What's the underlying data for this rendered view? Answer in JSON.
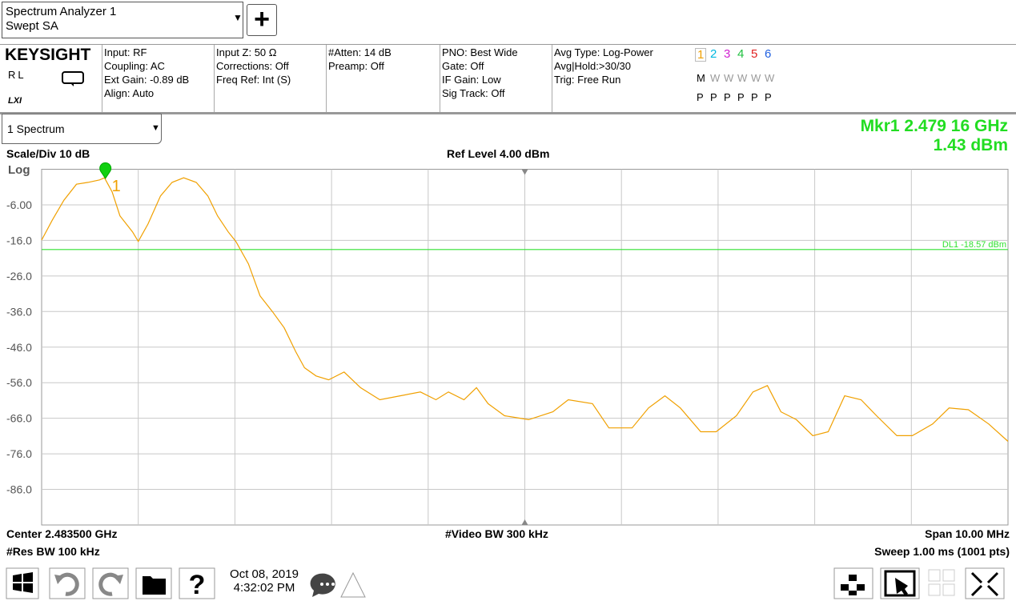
{
  "header": {
    "title": "Spectrum Analyzer 1",
    "mode": "Swept SA"
  },
  "info": {
    "brand": "KEYSIGHT",
    "rl": "RL",
    "lxi": "LXI",
    "columns": [
      [
        "Input: RF",
        "Coupling: AC",
        "Ext Gain: -0.89 dB",
        "Align: Auto"
      ],
      [
        "Input Z: 50 Ω",
        "Corrections: Off",
        "Freq Ref: Int (S)"
      ],
      [
        "#Atten: 14 dB",
        "Preamp: Off"
      ],
      [
        "PNO: Best Wide",
        "Gate: Off",
        "IF Gain: Low",
        "Sig Track: Off"
      ],
      [
        "Avg Type: Log-Power",
        "Avg|Hold:>30/30",
        "Trig: Free Run"
      ]
    ],
    "traces": {
      "numbers": [
        {
          "label": "1",
          "color": "#f0a000"
        },
        {
          "label": "2",
          "color": "#00b8e0"
        },
        {
          "label": "3",
          "color": "#d020d0"
        },
        {
          "label": "4",
          "color": "#20c040"
        },
        {
          "label": "5",
          "color": "#e02020"
        },
        {
          "label": "6",
          "color": "#2060e0"
        }
      ],
      "types": [
        "M",
        "W",
        "W",
        "W",
        "W",
        "W"
      ],
      "detectors": [
        "P",
        "P",
        "P",
        "P",
        "P",
        "P"
      ]
    }
  },
  "window": {
    "name": "1 Spectrum"
  },
  "marker_readout": [
    "Mkr1  2.479 16 GHz",
    "1.43 dBm"
  ],
  "chart_data": {
    "type": "line",
    "scale_label": "Scale/Div 10 dB",
    "ref_label": "Ref Level 4.00 dBm",
    "scale_type": "Log",
    "xlim": [
      2478.5,
      2488.5
    ],
    "ylim": [
      -96,
      4
    ],
    "x_gridlines": [
      2479.5,
      2480.5,
      2481.5,
      2482.5,
      2483.5,
      2484.5,
      2485.5,
      2486.5,
      2487.5
    ],
    "yticks": [
      {
        "value": -6,
        "label": "-6.00"
      },
      {
        "value": -16,
        "label": "-16.0"
      },
      {
        "value": -26,
        "label": "-26.0"
      },
      {
        "value": -36,
        "label": "-36.0"
      },
      {
        "value": -46,
        "label": "-46.0"
      },
      {
        "value": -56,
        "label": "-56.0"
      },
      {
        "value": -66,
        "label": "-66.0"
      },
      {
        "value": -76,
        "label": "-76.0"
      },
      {
        "value": -86,
        "label": "-86.0"
      }
    ],
    "grid": true,
    "color": "#f0a000",
    "x": [
      2478.5,
      2478.61,
      2478.73,
      2478.86,
      2478.98,
      2479.1,
      2479.15,
      2479.23,
      2479.31,
      2479.44,
      2479.5,
      2479.6,
      2479.73,
      2479.85,
      2479.97,
      2480.1,
      2480.22,
      2480.32,
      2480.43,
      2480.51,
      2480.64,
      2480.76,
      2480.89,
      2481.01,
      2481.13,
      2481.22,
      2481.34,
      2481.47,
      2481.63,
      2481.8,
      2482.0,
      2482.21,
      2482.42,
      2482.58,
      2482.71,
      2482.87,
      2483.0,
      2483.12,
      2483.29,
      2483.54,
      2483.79,
      2483.95,
      2484.2,
      2484.37,
      2484.61,
      2484.78,
      2484.95,
      2485.11,
      2485.32,
      2485.48,
      2485.69,
      2485.86,
      2486.01,
      2486.15,
      2486.31,
      2486.48,
      2486.64,
      2486.81,
      2486.98,
      2487.14,
      2487.35,
      2487.51,
      2487.72,
      2487.89,
      2488.09,
      2488.3,
      2488.5
    ],
    "values": [
      -15.9,
      -10.3,
      -4.7,
      -0.2,
      0.3,
      1.0,
      1.6,
      -2.4,
      -9.1,
      -13.6,
      -16.3,
      -11.4,
      -3.5,
      0.3,
      1.6,
      0.3,
      -3.5,
      -9.1,
      -13.6,
      -16.3,
      -22.6,
      -31.6,
      -36.1,
      -40.6,
      -47.3,
      -51.8,
      -54.1,
      -55.2,
      -53.0,
      -57.4,
      -60.8,
      -59.7,
      -58.6,
      -60.8,
      -58.6,
      -60.8,
      -57.4,
      -61.9,
      -65.3,
      -66.4,
      -64.2,
      -60.8,
      -61.9,
      -68.7,
      -68.7,
      -63.1,
      -59.7,
      -63.1,
      -69.8,
      -69.8,
      -65.3,
      -58.6,
      -56.8,
      -64.2,
      -66.4,
      -70.9,
      -69.8,
      -59.7,
      -60.8,
      -65.3,
      -70.9,
      -70.9,
      -67.6,
      -63.1,
      -63.6,
      -67.6,
      -72.5
    ],
    "marker": {
      "label": "1",
      "x": 2479.16,
      "y": 1.43,
      "color": "#10d010"
    },
    "display_line": {
      "value": -18.57,
      "label": "DL1 -18.57 dBm",
      "color": "#30e030"
    }
  },
  "footer": {
    "left": [
      "Center 2.483500 GHz",
      "#Res BW 100 kHz"
    ],
    "center": "#Video BW 300 kHz",
    "right": [
      "Span 10.00 MHz",
      "Sweep 1.00 ms (1001 pts)"
    ]
  },
  "taskbar": {
    "date": "Oct 08, 2019",
    "time": "4:32:02 PM"
  }
}
